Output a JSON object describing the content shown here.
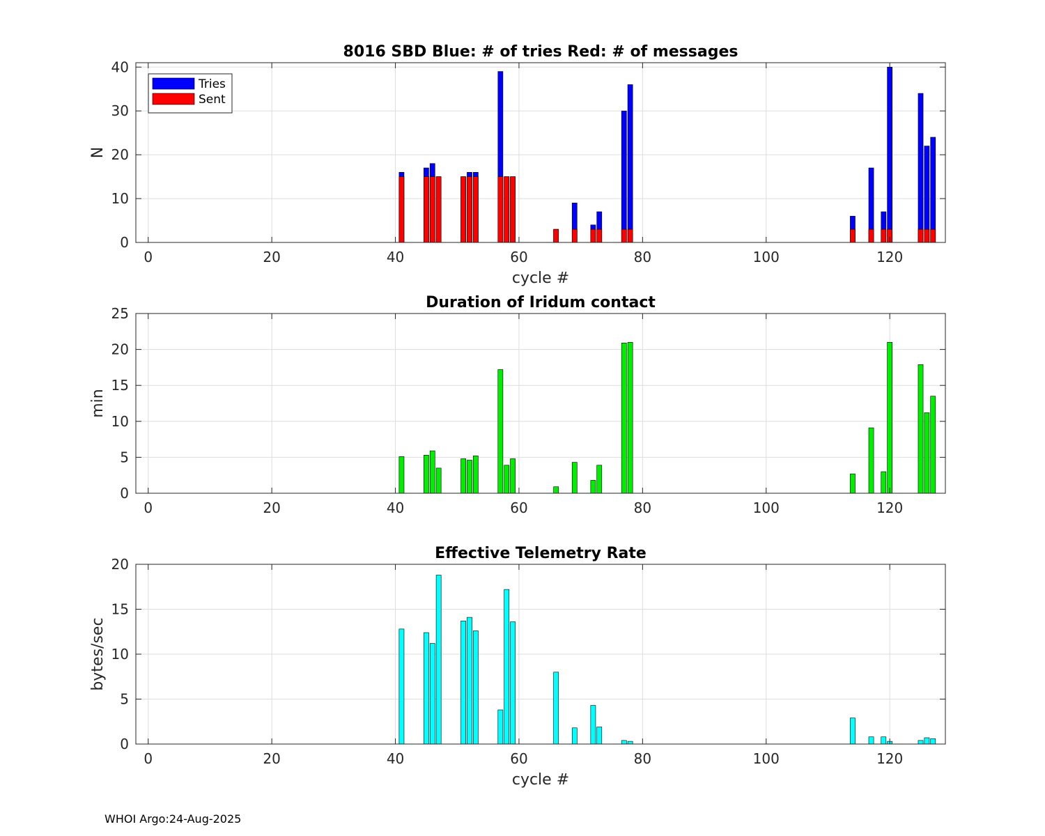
{
  "figure_footer": "WHOI Argo:24-Aug-2025",
  "chart_data": [
    {
      "type": "bar",
      "title": "8016 SBD  Blue: # of tries   Red: # of messages",
      "xlabel": "cycle #",
      "ylabel": "N",
      "xlim": [
        -2,
        129
      ],
      "ylim": [
        0,
        41
      ],
      "xticks": [
        0,
        20,
        40,
        60,
        80,
        100,
        120
      ],
      "yticks": [
        0,
        10,
        20,
        30,
        40
      ],
      "grid": true,
      "legend_position": "top-left",
      "series": [
        {
          "name": "Tries",
          "color": "#0000ff",
          "x": [
            41,
            45,
            46,
            47,
            51,
            52,
            53,
            57,
            58,
            59,
            66,
            69,
            72,
            73,
            77,
            78,
            114,
            117,
            119,
            120,
            125,
            126,
            127
          ],
          "values": [
            16,
            17,
            18,
            15,
            15,
            16,
            16,
            39,
            15,
            15,
            3,
            9,
            4,
            7,
            30,
            36,
            6,
            17,
            7,
            40,
            34,
            22,
            24
          ]
        },
        {
          "name": "Sent",
          "color": "#ff0000",
          "x": [
            41,
            45,
            46,
            47,
            51,
            52,
            53,
            57,
            58,
            59,
            66,
            69,
            72,
            73,
            77,
            78,
            114,
            117,
            119,
            120,
            125,
            126,
            127
          ],
          "values": [
            15,
            15,
            15,
            15,
            15,
            15,
            15,
            15,
            15,
            15,
            3,
            3,
            3,
            3,
            3,
            3,
            3,
            3,
            3,
            3,
            3,
            3,
            3
          ]
        }
      ]
    },
    {
      "type": "bar",
      "title": "Duration of Iridum contact",
      "xlabel": "",
      "ylabel": "min",
      "xlim": [
        -2,
        129
      ],
      "ylim": [
        0,
        25
      ],
      "xticks": [
        0,
        20,
        40,
        60,
        80,
        100,
        120
      ],
      "yticks": [
        0,
        5,
        10,
        15,
        20,
        25
      ],
      "grid": true,
      "series": [
        {
          "color": "#00ee00",
          "x": [
            41,
            45,
            46,
            47,
            51,
            52,
            53,
            57,
            58,
            59,
            66,
            69,
            72,
            73,
            77,
            78,
            114,
            117,
            119,
            120,
            125,
            126,
            127
          ],
          "values": [
            5.1,
            5.3,
            5.9,
            3.5,
            4.8,
            4.6,
            5.2,
            17.2,
            3.9,
            4.8,
            0.9,
            4.3,
            1.8,
            3.9,
            20.9,
            21.0,
            2.7,
            9.1,
            3.0,
            21.0,
            17.9,
            11.2,
            13.5
          ]
        }
      ]
    },
    {
      "type": "bar",
      "title": "Effective Telemetry Rate",
      "xlabel": "cycle #",
      "ylabel": "bytes/sec",
      "xlim": [
        -2,
        129
      ],
      "ylim": [
        0,
        20
      ],
      "xticks": [
        0,
        20,
        40,
        60,
        80,
        100,
        120
      ],
      "yticks": [
        0,
        5,
        10,
        15,
        20
      ],
      "grid": true,
      "series": [
        {
          "color": "#00ffff",
          "x": [
            41,
            45,
            46,
            47,
            51,
            52,
            53,
            57,
            58,
            59,
            66,
            69,
            72,
            73,
            77,
            78,
            114,
            117,
            119,
            120,
            125,
            126,
            127
          ],
          "values": [
            12.8,
            12.4,
            11.2,
            18.8,
            13.7,
            14.1,
            12.6,
            3.8,
            17.2,
            13.6,
            8.0,
            1.8,
            4.3,
            1.9,
            0.4,
            0.3,
            2.9,
            0.8,
            0.8,
            0.3,
            0.4,
            0.7,
            0.6
          ]
        }
      ]
    }
  ]
}
